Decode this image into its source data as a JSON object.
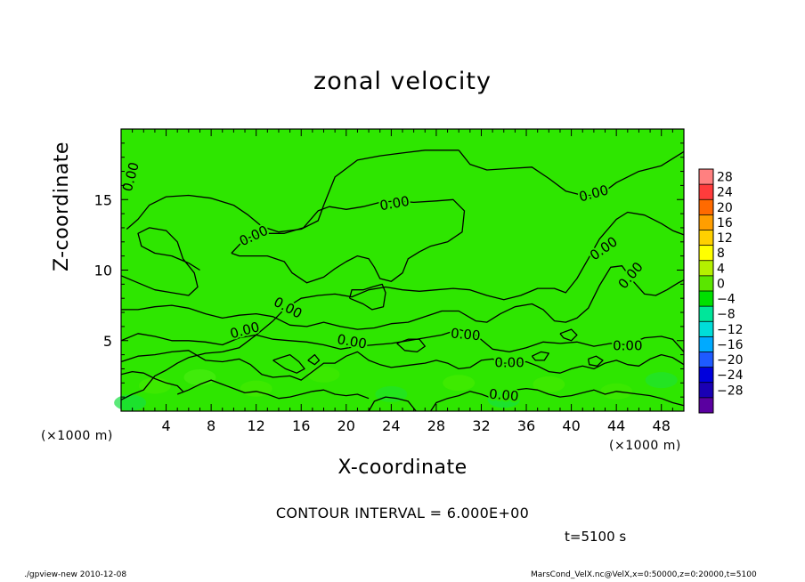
{
  "chart_data": {
    "type": "contour",
    "title": "zonal velocity",
    "xlabel": "X-coordinate",
    "ylabel": "Z-coordinate",
    "x_unit_left": "(×1000 m)",
    "x_unit_right": "(×1000 m)",
    "xlim": [
      0,
      50
    ],
    "ylim": [
      0,
      20
    ],
    "x_ticks": [
      4,
      8,
      12,
      16,
      20,
      24,
      28,
      32,
      36,
      40,
      44,
      48
    ],
    "y_ticks": [
      5,
      10,
      15
    ],
    "contour_label": "0.00",
    "contour_interval_text": "CONTOUR INTERVAL = 6.000E+00",
    "colorbar": {
      "levels": [
        28,
        24,
        20,
        16,
        12,
        8,
        4,
        0,
        -4,
        -8,
        -12,
        -16,
        -20,
        -24,
        -28
      ],
      "colors": [
        "#ff8080",
        "#ff3c3c",
        "#ff6a00",
        "#ff9e00",
        "#ffd000",
        "#ffff00",
        "#b4f000",
        "#5ae600",
        "#00e000",
        "#00e69a",
        "#00ddd8",
        "#00aaff",
        "#1e5aff",
        "#0000dc",
        "#1a00b4",
        "#5a00a0"
      ]
    },
    "field_color": "#2ee600",
    "contour_lines": [
      [
        [
          0.5,
          12.9
        ],
        [
          1.5,
          13.6
        ],
        [
          2.5,
          14.6
        ],
        [
          4,
          15.2
        ],
        [
          6,
          15.3
        ],
        [
          8,
          15.1
        ],
        [
          10,
          14.6
        ],
        [
          11.3,
          13.9
        ],
        [
          12.5,
          13.1
        ],
        [
          14,
          12.7
        ],
        [
          16,
          12.9
        ],
        [
          17.5,
          13.5
        ],
        [
          18,
          14.6
        ],
        [
          19,
          16.6
        ],
        [
          21,
          17.8
        ],
        [
          23,
          18.1
        ],
        [
          25,
          18.3
        ],
        [
          27,
          18.5
        ],
        [
          29,
          18.5
        ],
        [
          30,
          18.5
        ]
      ],
      [
        [
          30,
          18.5
        ],
        [
          31,
          17.5
        ],
        [
          32.5,
          17.1
        ],
        [
          34.5,
          17.2
        ],
        [
          36.5,
          17.3
        ],
        [
          38,
          16.5
        ],
        [
          39.5,
          15.6
        ],
        [
          41,
          15.3
        ],
        [
          42.5,
          15.3
        ],
        [
          44,
          16.2
        ],
        [
          46,
          17
        ],
        [
          48,
          17.4
        ],
        [
          50,
          18.4
        ]
      ],
      [
        [
          0,
          9.6
        ],
        [
          1.5,
          9.1
        ],
        [
          3,
          8.6
        ],
        [
          4.5,
          8.4
        ],
        [
          6,
          8.2
        ],
        [
          6.8,
          8.8
        ],
        [
          6.5,
          9.8
        ],
        [
          5.5,
          10.8
        ],
        [
          5,
          12
        ],
        [
          4,
          12.8
        ],
        [
          2.5,
          13
        ],
        [
          1.5,
          12.6
        ],
        [
          1.8,
          11.7
        ],
        [
          3,
          11.2
        ],
        [
          4.5,
          11
        ],
        [
          6,
          10.5
        ],
        [
          7,
          10
        ]
      ],
      [
        [
          9.8,
          11.2
        ],
        [
          11,
          12.2
        ],
        [
          12.5,
          12.6
        ],
        [
          14.5,
          12.6
        ],
        [
          16.2,
          13
        ],
        [
          17.5,
          14.2
        ],
        [
          18.5,
          14.5
        ],
        [
          20,
          14.3
        ],
        [
          21.5,
          14.5
        ],
        [
          23,
          14.8
        ],
        [
          24.5,
          14.9
        ],
        [
          26,
          14.8
        ],
        [
          28,
          14.9
        ],
        [
          29.5,
          15
        ],
        [
          30.5,
          14.2
        ],
        [
          30.3,
          12.7
        ],
        [
          29,
          12
        ],
        [
          27.5,
          11.7
        ],
        [
          26.5,
          11.3
        ],
        [
          25.5,
          10.8
        ],
        [
          25,
          9.8
        ],
        [
          24,
          9.2
        ],
        [
          23,
          9.4
        ],
        [
          22.5,
          10.2
        ],
        [
          22,
          10.8
        ],
        [
          21,
          11
        ],
        [
          20,
          10.6
        ],
        [
          19,
          10.1
        ],
        [
          18,
          9.5
        ],
        [
          16.5,
          9.1
        ],
        [
          15.2,
          9.8
        ],
        [
          14.5,
          10.6
        ],
        [
          13,
          11
        ],
        [
          11.5,
          11
        ],
        [
          10.5,
          11
        ],
        [
          9.8,
          11.2
        ]
      ],
      [
        [
          0,
          0.8
        ],
        [
          1,
          1.2
        ],
        [
          2,
          1.5
        ],
        [
          3,
          2.5
        ],
        [
          4,
          2.9
        ],
        [
          5,
          3.4
        ],
        [
          6,
          3.8
        ],
        [
          7.5,
          4.1
        ],
        [
          9,
          4.2
        ],
        [
          10.5,
          4.5
        ],
        [
          12,
          5.4
        ],
        [
          13.5,
          6.4
        ],
        [
          14.6,
          7.3
        ],
        [
          16,
          8
        ],
        [
          17.5,
          8.2
        ],
        [
          19,
          8.3
        ],
        [
          20.5,
          8.1
        ],
        [
          22,
          8.6
        ],
        [
          23.5,
          8.8
        ],
        [
          25,
          8.6
        ],
        [
          26.5,
          8.5
        ],
        [
          28,
          8.6
        ],
        [
          29.5,
          8.7
        ],
        [
          31,
          8.6
        ],
        [
          32.5,
          8.2
        ],
        [
          34,
          7.9
        ],
        [
          35.5,
          8.2
        ],
        [
          37,
          8.7
        ],
        [
          38.5,
          8.7
        ],
        [
          39.5,
          8.4
        ],
        [
          40.5,
          9.4
        ],
        [
          41.5,
          10.8
        ],
        [
          42.5,
          12.2
        ],
        [
          44,
          13.6
        ],
        [
          45,
          14.1
        ],
        [
          46.5,
          13.9
        ],
        [
          48,
          13.3
        ],
        [
          49,
          12.8
        ],
        [
          50,
          12.5
        ]
      ],
      [
        [
          20.3,
          8
        ],
        [
          21.5,
          7.6
        ],
        [
          22.3,
          7.2
        ],
        [
          23.3,
          7.4
        ],
        [
          23.5,
          8.4
        ],
        [
          23.2,
          9
        ],
        [
          22.3,
          8.8
        ],
        [
          21.5,
          8.6
        ],
        [
          20.5,
          8.6
        ],
        [
          20.3,
          8
        ]
      ],
      [
        [
          0,
          7.2
        ],
        [
          1.5,
          7.2
        ],
        [
          3,
          7.4
        ],
        [
          4.5,
          7.5
        ],
        [
          6,
          7.3
        ],
        [
          7.5,
          6.9
        ],
        [
          9,
          6.6
        ],
        [
          10.5,
          6.8
        ],
        [
          12,
          6.9
        ],
        [
          13.5,
          6.7
        ],
        [
          15,
          6.1
        ],
        [
          16.5,
          6
        ],
        [
          18,
          6.3
        ],
        [
          19.5,
          6
        ],
        [
          21,
          5.8
        ],
        [
          22.5,
          5.9
        ],
        [
          24,
          6.2
        ],
        [
          25.5,
          6.3
        ],
        [
          27,
          6.7
        ],
        [
          28.5,
          7.1
        ],
        [
          30,
          7.1
        ],
        [
          31.5,
          6.4
        ],
        [
          32.5,
          6.3
        ],
        [
          33.7,
          6.9
        ],
        [
          35,
          7.4
        ],
        [
          36.5,
          7.6
        ],
        [
          37.5,
          7.2
        ],
        [
          38.5,
          6.4
        ],
        [
          39.5,
          6.3
        ],
        [
          40.5,
          6.6
        ],
        [
          41.5,
          7.3
        ],
        [
          42.5,
          8.9
        ],
        [
          43.5,
          10.2
        ],
        [
          44.5,
          10.3
        ],
        [
          45.5,
          9.2
        ],
        [
          46.5,
          8.3
        ],
        [
          47.5,
          8.2
        ],
        [
          48.5,
          8.6
        ],
        [
          49.5,
          9.1
        ],
        [
          50,
          9.3
        ]
      ],
      [
        [
          0,
          5
        ],
        [
          1.5,
          5.5
        ],
        [
          3,
          5.3
        ],
        [
          4.5,
          5
        ],
        [
          6,
          5
        ],
        [
          7.5,
          4.9
        ],
        [
          9,
          4.7
        ],
        [
          10.5,
          5.2
        ],
        [
          12,
          5.4
        ],
        [
          13.5,
          5.1
        ],
        [
          15,
          5
        ],
        [
          16.5,
          4.9
        ],
        [
          18,
          4.7
        ],
        [
          19.5,
          4.4
        ],
        [
          21,
          4.6
        ],
        [
          22.5,
          4.7
        ],
        [
          24,
          4.8
        ],
        [
          25.5,
          5
        ],
        [
          27,
          5.2
        ],
        [
          28.5,
          5.4
        ],
        [
          30,
          5.8
        ],
        [
          31.5,
          5.4
        ],
        [
          33,
          4.4
        ],
        [
          34.5,
          4.2
        ],
        [
          36,
          4.5
        ],
        [
          37.5,
          4.9
        ],
        [
          39,
          4.8
        ],
        [
          40.5,
          4.9
        ],
        [
          42,
          4.6
        ],
        [
          43.5,
          4.8
        ],
        [
          45,
          4.7
        ],
        [
          46.5,
          5.2
        ],
        [
          48,
          5.3
        ],
        [
          49,
          5.1
        ],
        [
          50,
          4.2
        ]
      ],
      [
        [
          0,
          3.5
        ],
        [
          1.5,
          3.9
        ],
        [
          3,
          4
        ],
        [
          4.5,
          4.2
        ],
        [
          6,
          4.3
        ],
        [
          7.5,
          3.6
        ],
        [
          9,
          3.5
        ],
        [
          10.5,
          3.7
        ],
        [
          11.5,
          3.3
        ],
        [
          12.5,
          2.6
        ],
        [
          13.5,
          2.4
        ],
        [
          15,
          2.5
        ],
        [
          16,
          2.2
        ],
        [
          17,
          2.8
        ],
        [
          18,
          3.4
        ],
        [
          19,
          3.4
        ],
        [
          20,
          3.9
        ],
        [
          21,
          4.2
        ],
        [
          22,
          3.6
        ],
        [
          23,
          3.3
        ],
        [
          24,
          3.1
        ],
        [
          25,
          3.2
        ],
        [
          26,
          3.3
        ],
        [
          27,
          3.4
        ],
        [
          28,
          3.6
        ],
        [
          29,
          3.4
        ],
        [
          30,
          3
        ],
        [
          31,
          3.1
        ],
        [
          32,
          3.6
        ],
        [
          33,
          3.7
        ],
        [
          34,
          3.4
        ],
        [
          35,
          3.4
        ],
        [
          36,
          3.5
        ],
        [
          37,
          3.2
        ],
        [
          38,
          2.8
        ],
        [
          39,
          2.7
        ],
        [
          40,
          3
        ],
        [
          41,
          3.2
        ],
        [
          42,
          3
        ],
        [
          43,
          3.4
        ],
        [
          44,
          3.6
        ],
        [
          45,
          3.3
        ],
        [
          46,
          3.2
        ],
        [
          47,
          3.7
        ],
        [
          48,
          4
        ],
        [
          49,
          3.8
        ],
        [
          50,
          3.3
        ]
      ],
      [
        [
          13.5,
          3.6
        ],
        [
          14.2,
          3.8
        ],
        [
          15,
          4
        ],
        [
          15.8,
          3.5
        ],
        [
          16.3,
          3
        ],
        [
          15.6,
          2.7
        ],
        [
          14.6,
          3
        ],
        [
          13.5,
          3.6
        ]
      ],
      [
        [
          16.6,
          3.6
        ],
        [
          17.2,
          4
        ],
        [
          17.6,
          3.6
        ],
        [
          17.2,
          3.3
        ],
        [
          16.6,
          3.6
        ]
      ],
      [
        [
          22,
          0
        ],
        [
          22.5,
          0.7
        ],
        [
          23.5,
          1
        ],
        [
          24.5,
          0.9
        ],
        [
          25.5,
          0.7
        ],
        [
          26.2,
          0
        ]
      ],
      [
        [
          27.5,
          0
        ],
        [
          28,
          0.6
        ],
        [
          29,
          0.9
        ],
        [
          30,
          1.1
        ],
        [
          31,
          1.4
        ],
        [
          32,
          1.2
        ],
        [
          33,
          0.9
        ],
        [
          34,
          1
        ]
      ],
      [
        [
          34,
          1.2
        ],
        [
          35,
          1.5
        ],
        [
          36,
          1.6
        ],
        [
          37,
          1.5
        ],
        [
          38,
          1.2
        ],
        [
          39,
          1
        ],
        [
          40,
          1.1
        ],
        [
          41,
          1.3
        ],
        [
          42,
          1.5
        ],
        [
          43,
          1.2
        ],
        [
          44,
          1.4
        ],
        [
          45,
          1.3
        ],
        [
          46,
          1.2
        ],
        [
          47,
          1.1
        ],
        [
          48,
          0.9
        ],
        [
          49,
          0.6
        ],
        [
          50,
          0.4
        ]
      ],
      [
        [
          5,
          1.2
        ],
        [
          6,
          1.5
        ],
        [
          7,
          1.9
        ],
        [
          8,
          2.2
        ],
        [
          9,
          1.9
        ],
        [
          10,
          1.6
        ],
        [
          11,
          1.3
        ],
        [
          12,
          1.4
        ],
        [
          13,
          1.2
        ],
        [
          14,
          0.9
        ],
        [
          15,
          1
        ],
        [
          16,
          1.2
        ],
        [
          17,
          1.4
        ],
        [
          18,
          1.5
        ],
        [
          19,
          1.2
        ],
        [
          20,
          1.1
        ],
        [
          21,
          1.2
        ],
        [
          22,
          0.9
        ]
      ],
      [
        [
          0,
          2.6
        ],
        [
          1,
          2.8
        ],
        [
          2,
          2.7
        ],
        [
          3,
          2.3
        ],
        [
          4,
          2
        ],
        [
          5,
          1.8
        ],
        [
          5.5,
          1.4
        ]
      ],
      [
        [
          39,
          5.5
        ],
        [
          40,
          5.8
        ],
        [
          40.5,
          5.4
        ],
        [
          40,
          5
        ],
        [
          39.3,
          5.2
        ],
        [
          39,
          5.5
        ]
      ],
      [
        [
          36.5,
          3.9
        ],
        [
          37.3,
          4.2
        ],
        [
          38,
          4.1
        ],
        [
          37.6,
          3.6
        ],
        [
          36.8,
          3.6
        ],
        [
          36.5,
          3.9
        ]
      ],
      [
        [
          41.5,
          3.7
        ],
        [
          42.2,
          3.9
        ],
        [
          42.8,
          3.6
        ],
        [
          42.3,
          3.2
        ],
        [
          41.6,
          3.3
        ],
        [
          41.5,
          3.7
        ]
      ],
      [
        [
          24.5,
          4.8
        ],
        [
          25.5,
          5.1
        ],
        [
          26.5,
          5.1
        ],
        [
          27,
          4.6
        ],
        [
          26.3,
          4.2
        ],
        [
          25.2,
          4.3
        ],
        [
          24.5,
          4.8
        ]
      ]
    ],
    "label_positions": [
      [
        0.9,
        16.6,
        -75
      ],
      [
        11.8,
        12.4,
        -25
      ],
      [
        24.3,
        14.7,
        -10
      ],
      [
        42,
        15.4,
        -15
      ],
      [
        42.9,
        11.5,
        -35
      ],
      [
        45.3,
        9.6,
        -50
      ],
      [
        14.8,
        7.3,
        28
      ],
      [
        11,
        5.7,
        -15
      ],
      [
        20.5,
        4.9,
        10
      ],
      [
        30.6,
        5.4,
        5
      ],
      [
        34.5,
        3.4,
        0
      ],
      [
        45,
        4.6,
        0
      ],
      [
        34,
        1.1,
        5
      ]
    ]
  },
  "footer": {
    "left": "./gpview-new   2010-12-08",
    "right": "MarsCond_VelX.nc@VelX,x=0:50000,z=0:20000,t=5100"
  },
  "time_label": "t=5100 s"
}
